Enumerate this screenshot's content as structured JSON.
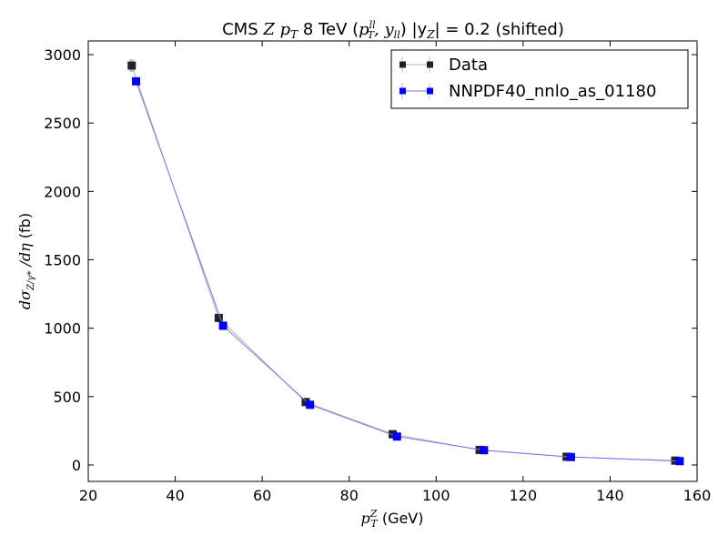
{
  "chart_data": {
    "type": "scatter",
    "title": {
      "prefix": "CMS ",
      "z": "Z",
      "pt": "p",
      "pt_sub": "T",
      "mid": " 8 TeV (",
      "ptll": "p",
      "ptll_sup": "ll",
      "ptll_sub": "T",
      "yll": ", y",
      "yll_sub": "ll",
      "close": ")  |y",
      "yz_sub": "Z",
      "suffix": "| = 0.2 (shifted)"
    },
    "xlabel": {
      "p": "p",
      "sup": "Z",
      "sub": "T",
      "unit": " (GeV)"
    },
    "ylabel": {
      "main": "dσ",
      "sub": "Z/γ*",
      "rest": " /dη",
      "unit": " (fb)"
    },
    "xlim": [
      20,
      160
    ],
    "ylim": [
      -120,
      3100
    ],
    "xticks": [
      20,
      40,
      60,
      80,
      100,
      120,
      140,
      160
    ],
    "yticks": [
      0,
      500,
      1000,
      1500,
      2000,
      2500,
      3000
    ],
    "legend_position": "top-right",
    "series": [
      {
        "name": "Data",
        "color": "#222222",
        "line_color": "#b0b0b0",
        "x": [
          30,
          50,
          70,
          90,
          110,
          130,
          155
        ],
        "y": [
          2920,
          1075,
          460,
          225,
          110,
          60,
          32
        ],
        "yerr": [
          40,
          18,
          10,
          6,
          4,
          3,
          2
        ]
      },
      {
        "name": "NNPDF40_nnlo_as_01180",
        "color": "#0000ff",
        "line_color": "#7777ee",
        "x": [
          31,
          51,
          71,
          91,
          111,
          131,
          156
        ],
        "y": [
          2805,
          1018,
          440,
          208,
          108,
          58,
          28
        ],
        "yerr": [
          0,
          0,
          0,
          0,
          0,
          0,
          0
        ]
      }
    ]
  }
}
